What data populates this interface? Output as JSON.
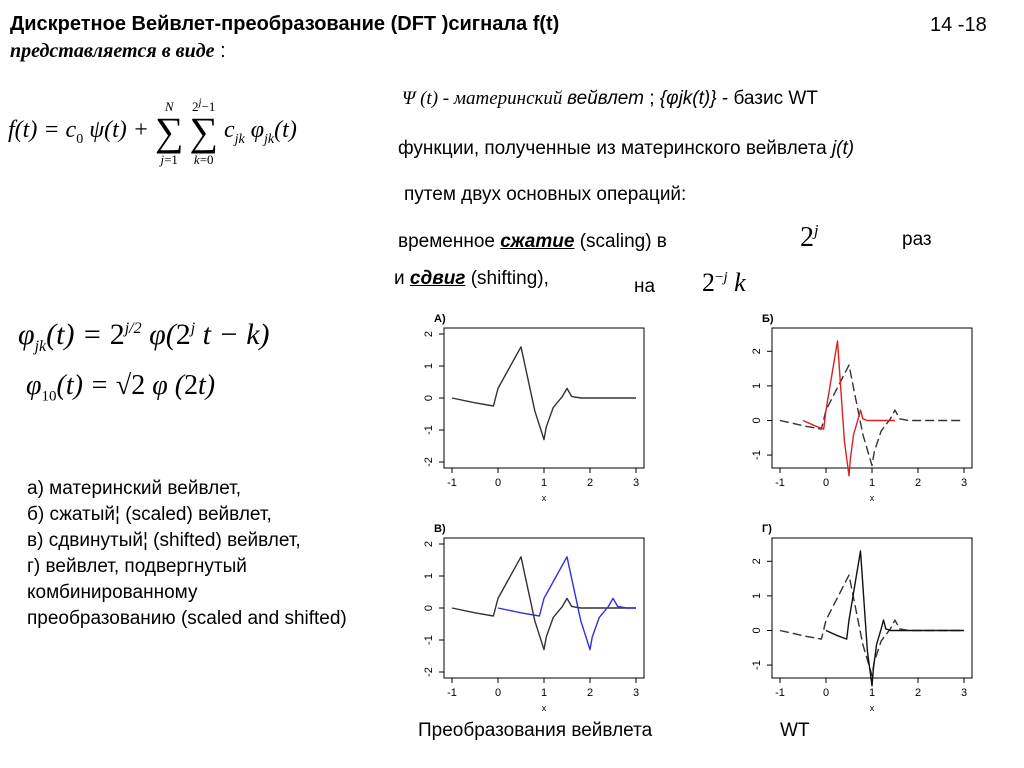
{
  "header": {
    "title_line1": "Дискретное Вейвлет-преобразование  (DFT )сигнала f(t)",
    "title_line2_bold": "представляется в виде",
    "title_line2_rest": " :",
    "page_number": "14 -18"
  },
  "formulas": {
    "main": "f(t) = c₀ ψ(t) + Σ_{j=1}^{N} Σ_{k=0}^{2^j −1} c_jk φ_jk(t)",
    "phi_jk": "φ_jk(t) = 2^{j/2} φ(2^j t − k)",
    "phi_10": "φ₁₀(t) = √2 φ(2t)",
    "scale_factor": "2^j",
    "shift_factor": "2^−j k"
  },
  "text": {
    "line1_psi": "Ψ (t) - материнский ",
    "line1_wavelet": "вейвлет",
    "line1_mid": " ;  ",
    "line1_basis": "{φjk(t)}",
    "line1_end": " - базис WT",
    "line2_main": "функции, полученные из материнского вейвлета ",
    "line2_italic": "j(t)",
    "line3": "путем двух основных операций:",
    "line4_pre": "временное ",
    "line4_em": "сжатие",
    "line4_post": " (scaling) в",
    "line4_unit": "раз",
    "line5_pre": "и ",
    "line5_em": "сдвиг",
    "line5_post": " (shifting),",
    "line5_on": "на"
  },
  "legend_list": [
    "а) материнский вейвлет,",
    "б) сжатый¦ (scaled) вейвлет,",
    "в) сдвинутый¦ (shifted) вейвлет,",
    "г) вейвлет, подвергнутый комбинированному преобразованию (scaled and shifted)"
  ],
  "caption": {
    "left": "Преобразования вейвлета",
    "right": "WT"
  },
  "chart_data": [
    {
      "type": "line",
      "title": "А)",
      "xlabel": "x",
      "ylabel": "",
      "xlim": [
        -1,
        3
      ],
      "ylim": [
        -2,
        2
      ],
      "xticks": [
        "-1",
        "0",
        "1",
        "2",
        "3"
      ],
      "yticks": [
        "-2",
        "-1",
        "0",
        "1",
        "2"
      ],
      "series": [
        {
          "color": "#333333",
          "dash": false,
          "x": [
            -1,
            -0.5,
            -0.1,
            0,
            0.5,
            0.8,
            1,
            1.05,
            1.2,
            1.4,
            1.5,
            1.6,
            1.8,
            2,
            3
          ],
          "y": [
            0,
            -0.15,
            -0.25,
            0.3,
            1.6,
            -0.4,
            -1.3,
            -0.9,
            -0.3,
            0.05,
            0.3,
            0.05,
            0,
            0,
            0
          ]
        }
      ]
    },
    {
      "type": "line",
      "title": "Б)",
      "xlabel": "x",
      "ylabel": "",
      "xlim": [
        -1,
        3
      ],
      "ylim": [
        -1.2,
        2.5
      ],
      "xticks": [
        "-1",
        "0",
        "1",
        "2",
        "3"
      ],
      "yticks": [
        "-1",
        "0",
        "1",
        "2"
      ],
      "series": [
        {
          "color": "#333333",
          "dash": true,
          "x": [
            -1,
            -0.5,
            -0.1,
            0,
            0.5,
            0.8,
            1,
            1.05,
            1.2,
            1.4,
            1.5,
            1.6,
            1.8,
            2,
            3
          ],
          "y": [
            0,
            -0.15,
            -0.25,
            0.3,
            1.6,
            -0.4,
            -1.3,
            -0.9,
            -0.3,
            0.05,
            0.3,
            0.05,
            0,
            0,
            0
          ]
        },
        {
          "color": "#e02020",
          "dash": false,
          "x": [
            -0.5,
            -0.25,
            -0.05,
            0,
            0.25,
            0.4,
            0.5,
            0.53,
            0.6,
            0.7,
            0.75,
            0.8,
            0.9,
            1,
            1.5
          ],
          "y": [
            0,
            -0.15,
            -0.25,
            0.3,
            2.3,
            -0.6,
            -1.6,
            -1.1,
            -0.4,
            0.05,
            0.3,
            0.05,
            0,
            0,
            0
          ]
        }
      ]
    },
    {
      "type": "line",
      "title": "В)",
      "xlabel": "x",
      "ylabel": "",
      "xlim": [
        -1,
        3
      ],
      "ylim": [
        -2,
        2
      ],
      "xticks": [
        "-1",
        "0",
        "1",
        "2",
        "3"
      ],
      "yticks": [
        "-2",
        "-1",
        "0",
        "1",
        "2"
      ],
      "series": [
        {
          "color": "#333333",
          "dash": false,
          "x": [
            -1,
            -0.5,
            -0.1,
            0,
            0.5,
            0.8,
            1,
            1.05,
            1.2,
            1.4,
            1.5,
            1.6,
            1.8,
            2,
            3
          ],
          "y": [
            0,
            -0.15,
            -0.25,
            0.3,
            1.6,
            -0.4,
            -1.3,
            -0.9,
            -0.3,
            0.05,
            0.3,
            0.05,
            0,
            0,
            0
          ]
        },
        {
          "color": "#3030e0",
          "dash": false,
          "x": [
            0,
            0.5,
            0.9,
            1,
            1.5,
            1.8,
            2,
            2.05,
            2.2,
            2.4,
            2.5,
            2.6,
            2.8,
            3
          ],
          "y": [
            0,
            -0.15,
            -0.25,
            0.3,
            1.6,
            -0.4,
            -1.3,
            -0.9,
            -0.3,
            0.05,
            0.3,
            0.05,
            0,
            0
          ]
        }
      ]
    },
    {
      "type": "line",
      "title": "Г)",
      "xlabel": "x",
      "ylabel": "",
      "xlim": [
        -1,
        3
      ],
      "ylim": [
        -1.2,
        2.5
      ],
      "xticks": [
        "-1",
        "0",
        "1",
        "2",
        "3"
      ],
      "yticks": [
        "-1",
        "0",
        "1",
        "2"
      ],
      "series": [
        {
          "color": "#333333",
          "dash": true,
          "x": [
            -1,
            -0.5,
            -0.1,
            0,
            0.5,
            0.8,
            1,
            1.05,
            1.2,
            1.4,
            1.5,
            1.6,
            1.8,
            2,
            3
          ],
          "y": [
            0,
            -0.15,
            -0.25,
            0.3,
            1.6,
            -0.4,
            -1.3,
            -0.9,
            -0.3,
            0.05,
            0.3,
            0.05,
            0,
            0,
            0
          ]
        },
        {
          "color": "#111111",
          "dash": false,
          "x": [
            0,
            0.25,
            0.45,
            0.5,
            0.75,
            0.9,
            1,
            1.03,
            1.1,
            1.2,
            1.25,
            1.3,
            1.4,
            1.5,
            3
          ],
          "y": [
            0,
            -0.15,
            -0.25,
            0.3,
            2.3,
            -0.6,
            -1.6,
            -1.1,
            -0.4,
            0.05,
            0.3,
            0.05,
            0,
            0,
            0
          ]
        }
      ]
    }
  ]
}
